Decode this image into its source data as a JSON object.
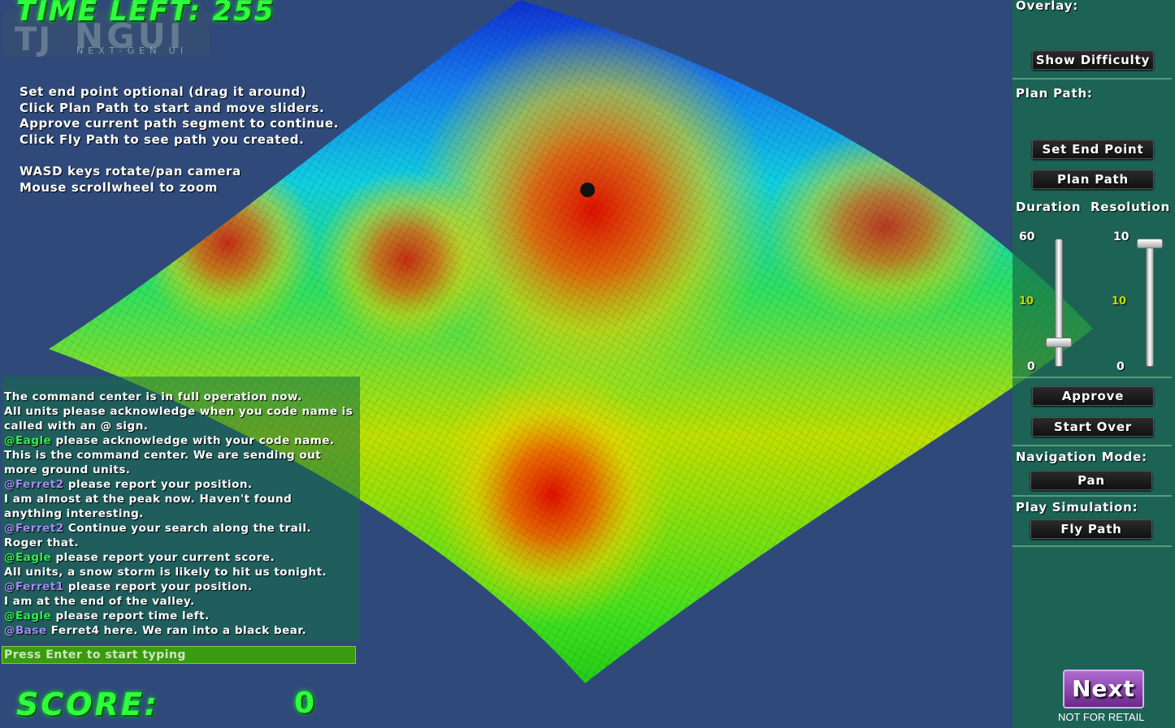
{
  "hud": {
    "time_left": "TIME LEFT: 255",
    "logo_mark": "TJ",
    "logo_name": "NGUI",
    "logo_sub": "NEXT-GEN UI",
    "score_label": "SCORE:",
    "score_value": "0"
  },
  "instructions": [
    "Set end point optional (drag it around)",
    "Click Plan Path to start and move sliders.",
    "Approve current path segment to continue.",
    "Click Fly Path to see path you created.",
    "",
    "WASD keys rotate/pan camera",
    "Mouse scrollwheel to zoom"
  ],
  "chat": {
    "lines": [
      {
        "tag": "",
        "text": " The command center is in full operation now."
      },
      {
        "tag": "",
        "text": " All units please acknowledge when you code name is"
      },
      {
        "tag": "",
        "text": "called with an @ sign."
      },
      {
        "tag": " @Eagle",
        "text": " please acknowledge with your code name."
      },
      {
        "tag": "",
        "text": " This is the command center. We are sending out"
      },
      {
        "tag": "",
        "text": "more ground units."
      },
      {
        "tag": " @Ferret2",
        "text": " please report your position."
      },
      {
        "tag": "",
        "text": " I am almost at the peak now. Haven't found"
      },
      {
        "tag": "",
        "text": "anything interesting."
      },
      {
        "tag": " @Ferret2",
        "text": " Continue your search along the trail."
      },
      {
        "tag": "",
        "text": " Roger that."
      },
      {
        "tag": " @Eagle",
        "text": " please report your current score."
      },
      {
        "tag": "",
        "text": " All units, a snow storm is likely to hit us tonight."
      },
      {
        "tag": " @Ferret1",
        "text": " please report your position."
      },
      {
        "tag": "",
        "text": " I am at the end of the valley."
      },
      {
        "tag": " @Eagle",
        "text": " please report time left."
      },
      {
        "tag": " @Base",
        "text": " Ferret4 here. We ran into a black bear."
      }
    ],
    "input_placeholder": "Press Enter to start typing"
  },
  "panel": {
    "overlay_label": "Overlay:",
    "show_difficulty": "Show Difficulty",
    "plan_path_label": "Plan Path:",
    "set_end_point": "Set End Point",
    "plan_path": "Plan Path",
    "duration_label": "Duration",
    "resolution_label": "Resolution",
    "duration": {
      "max": "60",
      "mid": "10",
      "min": "0",
      "value": 10
    },
    "resolution": {
      "max": "10",
      "mid": "10",
      "min": "0",
      "value": 10
    },
    "approve": "Approve",
    "start_over": "Start Over",
    "navigation_label": "Navigation Mode:",
    "navigation_mode": "Pan",
    "play_label": "Play Simulation:",
    "fly_path": "Fly Path",
    "next": "Next",
    "not_for_retail": "NOT FOR RETAIL"
  },
  "colors": {
    "background": "#2f4a7a",
    "hud_green": "#2dff3a",
    "panel": "#146e46",
    "next_purple": "#8e46ae"
  }
}
